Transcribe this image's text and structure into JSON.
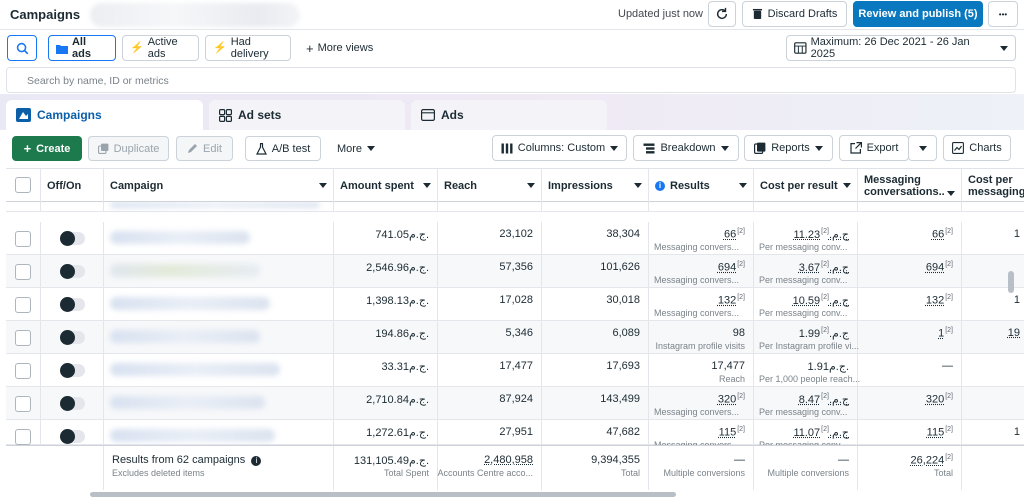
{
  "header": {
    "title": "Campaigns",
    "updated": "Updated just now",
    "discard_label": "Discard Drafts",
    "review_label": "Review and publish (5)",
    "more_glyph": "•••"
  },
  "filters": {
    "all_ads": "All ads",
    "active_ads": "Active ads",
    "had_delivery": "Had delivery",
    "more_views": "More views",
    "date_range": "Maximum: 26 Dec 2021 - 26 Jan 2025",
    "search_placeholder": "Search by name, ID or metrics"
  },
  "tabs": [
    {
      "label": "Campaigns"
    },
    {
      "label": "Ad sets"
    },
    {
      "label": "Ads"
    }
  ],
  "toolbar": {
    "create": "Create",
    "duplicate": "Duplicate",
    "edit": "Edit",
    "ab_test": "A/B test",
    "more": "More",
    "columns": "Columns: Custom",
    "breakdown": "Breakdown",
    "reports": "Reports",
    "export": "Export",
    "charts": "Charts"
  },
  "columns": {
    "offon": "Off/On",
    "campaign": "Campaign",
    "amount_spent": "Amount spent",
    "reach": "Reach",
    "impressions": "Impressions",
    "results": "Results",
    "cost_per_result": "Cost per result",
    "messaging": "Messaging conversations...",
    "cost_per_messaging": "Cost per messaging"
  },
  "rows": [
    {
      "amount": "741.05ج.م.",
      "reach": "23,102",
      "impressions": "38,304",
      "results": "66",
      "results_sub": "Messaging convers...",
      "cost": "11.23ج.م.",
      "cost_sub": "Per messaging conv...",
      "messaging": "66",
      "cpm": "1"
    },
    {
      "amount": "2,546.96ج.م.",
      "reach": "57,356",
      "impressions": "101,626",
      "results": "694",
      "results_sub": "Messaging convers...",
      "cost": "3.67ج.م.",
      "cost_sub": "Per messaging conv...",
      "messaging": "694",
      "cpm": ""
    },
    {
      "amount": "1,398.13ج.م.",
      "reach": "17,028",
      "impressions": "30,018",
      "results": "132",
      "results_sub": "Messaging convers...",
      "cost": "10.59ج.م.",
      "cost_sub": "Per messaging conv...",
      "messaging": "132",
      "cpm": "1"
    },
    {
      "amount": "194.86ج.م.",
      "reach": "5,346",
      "impressions": "6,089",
      "results": "98",
      "results_sub": "Instagram profile visits",
      "cost": "1.99ج.م.",
      "cost_sub": "Per Instagram profile vi...",
      "messaging": "1",
      "cpm": "19"
    },
    {
      "amount": "33.31ج.م.",
      "reach": "17,477",
      "impressions": "17,693",
      "results": "17,477",
      "results_sub": "Reach",
      "cost": "1.91ج.م.",
      "cost_sub": "Per 1,000 people reach...",
      "messaging": "—",
      "cpm": ""
    },
    {
      "amount": "2,710.84ج.م.",
      "reach": "87,924",
      "impressions": "143,499",
      "results": "320",
      "results_sub": "Messaging convers...",
      "cost": "8.47ج.م.",
      "cost_sub": "Per messaging conv...",
      "messaging": "320",
      "cpm": ""
    },
    {
      "amount": "1,272.61ج.م.",
      "reach": "27,951",
      "impressions": "47,682",
      "results": "115",
      "results_sub": "Messaging convers...",
      "cost": "11.07ج.م.",
      "cost_sub": "Per messaging conv...",
      "messaging": "115",
      "cpm": "1"
    }
  ],
  "footer": {
    "results_label": "Results from 62 campaigns",
    "excludes": "Excludes deleted items",
    "amount": "131,105.49ج.م.",
    "amount_sub": "Total Spent",
    "reach": "2,480,958",
    "reach_sub": "Accounts Centre acco...",
    "impressions": "9,394,355",
    "impressions_sub": "Total",
    "results": "—",
    "results_sub": "Multiple conversions",
    "cost": "—",
    "cost_sub": "Multiple conversions",
    "messaging": "26,224",
    "messaging_sub": "Total"
  },
  "colors": {
    "accent": "#0a78be",
    "create_green": "#1d7a4d",
    "tab_active_text": "#0a5fa8"
  },
  "icons": [
    "search-icon",
    "refresh-icon",
    "trash-icon",
    "calendar-grid-icon",
    "campaign-flag-icon",
    "ad-sets-grid-icon",
    "ads-icon",
    "columns-icon",
    "breakdown-icon",
    "reports-icon",
    "export-icon",
    "chart-icon",
    "info-icon",
    "flask-icon",
    "pencil-icon",
    "duplicate-icon",
    "lightning-icon"
  ]
}
